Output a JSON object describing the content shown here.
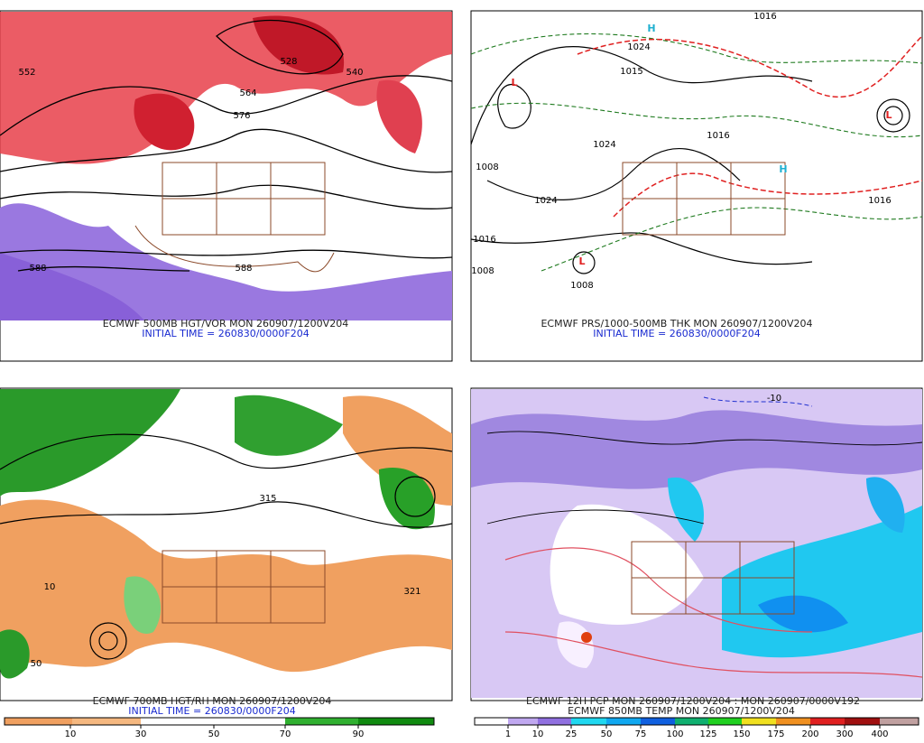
{
  "panels": [
    {
      "title": "ECMWF 500MB HGT/VOR MON 260907/1200V204",
      "initial_time": "INITIAL TIME = 260830/0000F204",
      "contour_labels": [
        "552",
        "528",
        "540",
        "564",
        "576",
        "588",
        "588"
      ]
    },
    {
      "title": "ECMWF PRS/1000-500MB THK MON 260907/1200V204",
      "initial_time": "INITIAL TIME = 260830/0000F204",
      "contour_labels": [
        "1016",
        "1024",
        "1015",
        "1024",
        "1024",
        "1016",
        "1008",
        "1008",
        "1016",
        "1008",
        "1016"
      ],
      "pressure_centers": [
        "H",
        "L",
        "L",
        "L",
        "H"
      ]
    },
    {
      "title": "ECMWF 700MB HGT/RH MON 260907/1200V204",
      "initial_time": "INITIAL TIME = 260830/0000F204",
      "contour_labels": [
        "315",
        "321",
        "50",
        "10"
      ],
      "colorbar": [
        10,
        30,
        50,
        70,
        90
      ]
    },
    {
      "title": "ECMWF 12H PCP MON 260907/1200V204 : MON 260907/0000V192",
      "subtitle": "ECMWF 850MB TEMP MON 260907/1200V204",
      "contour_labels": [
        "-10"
      ],
      "colorbar": [
        1,
        10,
        25,
        50,
        75,
        100,
        125,
        150,
        175,
        200,
        300,
        400
      ]
    }
  ]
}
